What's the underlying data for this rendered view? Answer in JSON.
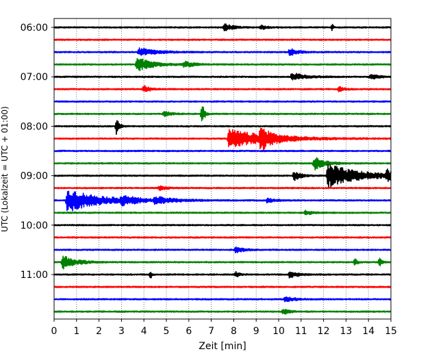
{
  "chart_data": {
    "type": "line",
    "title": "",
    "xlabel": "Zeit  [min]",
    "ylabel": "UTC (Lokalzeit = UTC + 01:00)",
    "xlim": [
      0,
      15
    ],
    "x_ticks": [
      0,
      1,
      2,
      3,
      4,
      5,
      6,
      7,
      8,
      9,
      10,
      11,
      12,
      13,
      14,
      15
    ],
    "x_tick_labels": [
      "0",
      "1",
      "2",
      "3",
      "4",
      "5",
      "6",
      "7",
      "8",
      "9",
      "10",
      "11",
      "12",
      "13",
      "14",
      "15"
    ],
    "y_tick_labels": [
      "06:00",
      "07:00",
      "08:00",
      "09:00",
      "10:00",
      "11:00"
    ],
    "grid": "vertical dotted at each minute",
    "trace_interval_minutes": 15,
    "colors": [
      "#000000",
      "#ff0000",
      "#0000ff",
      "#008000"
    ],
    "series": [
      {
        "start": "06:00",
        "events": [
          {
            "t": 7.6,
            "amp": 0.35,
            "dur": 0.7
          },
          {
            "t": 9.2,
            "amp": 0.2,
            "dur": 0.6
          },
          {
            "t": 12.4,
            "amp": 0.3,
            "dur": 0.1
          }
        ]
      },
      {
        "start": "06:15",
        "events": []
      },
      {
        "start": "06:30",
        "events": [
          {
            "t": 3.8,
            "amp": 0.35,
            "dur": 1.5
          },
          {
            "t": 10.5,
            "amp": 0.3,
            "dur": 0.8
          }
        ]
      },
      {
        "start": "06:45",
        "events": [
          {
            "t": 3.7,
            "amp": 0.6,
            "dur": 1.5
          },
          {
            "t": 5.8,
            "amp": 0.25,
            "dur": 0.8
          }
        ]
      },
      {
        "start": "07:00",
        "events": [
          {
            "t": 10.6,
            "amp": 0.35,
            "dur": 1.2
          },
          {
            "t": 14.1,
            "amp": 0.2,
            "dur": 0.8
          }
        ]
      },
      {
        "start": "07:15",
        "events": [
          {
            "t": 4.0,
            "amp": 0.3,
            "dur": 0.6
          },
          {
            "t": 12.7,
            "amp": 0.2,
            "dur": 0.5
          }
        ]
      },
      {
        "start": "07:30",
        "events": []
      },
      {
        "start": "07:45",
        "events": [
          {
            "t": 4.9,
            "amp": 0.25,
            "dur": 0.6
          },
          {
            "t": 6.6,
            "amp": 1.0,
            "dur": 0.2
          }
        ]
      },
      {
        "start": "08:00",
        "events": [
          {
            "t": 2.8,
            "amp": 0.9,
            "dur": 0.2
          }
        ]
      },
      {
        "start": "08:15",
        "events": [
          {
            "t": 7.8,
            "amp": 0.8,
            "dur": 3.6
          },
          {
            "t": 9.2,
            "amp": 0.8,
            "dur": 1.0
          }
        ]
      },
      {
        "start": "08:30",
        "events": []
      },
      {
        "start": "08:45",
        "events": [
          {
            "t": 11.6,
            "amp": 0.55,
            "dur": 1.0
          }
        ]
      },
      {
        "start": "09:00",
        "events": [
          {
            "t": 10.7,
            "amp": 0.4,
            "dur": 0.6
          },
          {
            "t": 12.2,
            "amp": 1.0,
            "dur": 3.0
          },
          {
            "t": 14.8,
            "amp": 0.45,
            "dur": 0.8
          }
        ]
      },
      {
        "start": "09:15",
        "events": [
          {
            "t": 4.7,
            "amp": 0.2,
            "dur": 0.6
          }
        ]
      },
      {
        "start": "09:30",
        "events": [
          {
            "t": 0.6,
            "amp": 1.0,
            "dur": 3.0
          },
          {
            "t": 3.0,
            "amp": 0.4,
            "dur": 1.2
          },
          {
            "t": 4.5,
            "amp": 0.25,
            "dur": 1.8
          },
          {
            "t": 9.5,
            "amp": 0.2,
            "dur": 0.7
          }
        ]
      },
      {
        "start": "09:45",
        "events": [
          {
            "t": 11.2,
            "amp": 0.2,
            "dur": 0.6
          }
        ]
      },
      {
        "start": "10:00",
        "events": []
      },
      {
        "start": "10:15",
        "events": []
      },
      {
        "start": "10:30",
        "events": [
          {
            "t": 8.1,
            "amp": 0.25,
            "dur": 0.8
          }
        ]
      },
      {
        "start": "10:45",
        "events": [
          {
            "t": 0.4,
            "amp": 0.6,
            "dur": 1.2
          },
          {
            "t": 13.4,
            "amp": 0.35,
            "dur": 0.2
          },
          {
            "t": 14.5,
            "amp": 0.35,
            "dur": 0.2
          }
        ]
      },
      {
        "start": "11:00",
        "events": [
          {
            "t": 4.3,
            "amp": 0.4,
            "dur": 0.1
          },
          {
            "t": 8.1,
            "amp": 0.25,
            "dur": 0.3
          },
          {
            "t": 10.5,
            "amp": 0.3,
            "dur": 0.8
          }
        ]
      },
      {
        "start": "11:15",
        "events": []
      },
      {
        "start": "11:30",
        "events": [
          {
            "t": 10.3,
            "amp": 0.25,
            "dur": 0.8
          }
        ]
      },
      {
        "start": "11:45",
        "events": [
          {
            "t": 10.2,
            "amp": 0.3,
            "dur": 0.5
          }
        ]
      }
    ]
  }
}
